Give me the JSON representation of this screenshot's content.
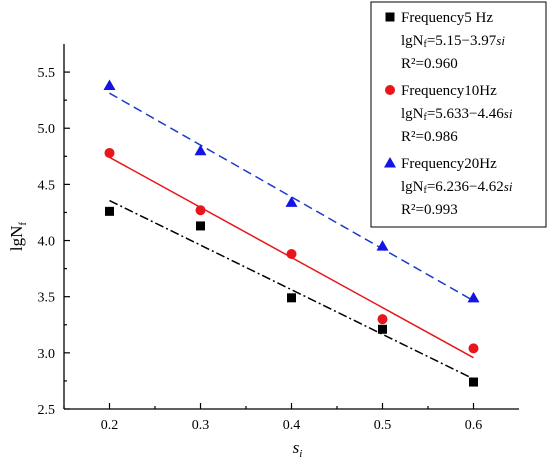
{
  "chart_data": {
    "type": "scatter",
    "xlabel": "s",
    "xlabel_sub": "i",
    "ylabel": "lgN",
    "ylabel_sub": "f",
    "xlim": [
      0.15,
      0.65
    ],
    "ylim": [
      2.5,
      5.75
    ],
    "xticks": [
      "0.2",
      "0.3",
      "0.4",
      "0.5",
      "0.6"
    ],
    "yticks": [
      "2.5",
      "3.0",
      "3.5",
      "4.0",
      "4.5",
      "5.0",
      "5.5"
    ],
    "legend_position": "top-right",
    "series": [
      {
        "name": "Frequency5 Hz",
        "marker": "square",
        "color": "#000000",
        "line_style": "dash-dot",
        "line_color": "#000000",
        "x": [
          0.2,
          0.3,
          0.4,
          0.5,
          0.6
        ],
        "y": [
          4.26,
          4.13,
          3.49,
          3.21,
          2.74
        ],
        "fit": {
          "intercept": 5.15,
          "slope": -3.97
        },
        "equation_prefix": "lgN",
        "equation_sub": "f",
        "equation_body": "=5.15−3.97",
        "equation_var": "si",
        "r2": "R²=0.960"
      },
      {
        "name": "Frequency10Hz",
        "marker": "circle",
        "color": "#e8161b",
        "line_style": "solid",
        "line_color": "#e8161b",
        "x": [
          0.2,
          0.3,
          0.4,
          0.5,
          0.6
        ],
        "y": [
          4.78,
          4.27,
          3.88,
          3.3,
          3.04
        ],
        "fit": {
          "intercept": 5.633,
          "slope": -4.46
        },
        "equation_prefix": "lgN",
        "equation_sub": "f",
        "equation_body": "=5.633−4.46",
        "equation_var": "si",
        "r2": "R²=0.986"
      },
      {
        "name": "Frequency20Hz",
        "marker": "triangle",
        "color": "#1414e6",
        "line_style": "dashed",
        "line_color": "#1a3cc8",
        "x": [
          0.2,
          0.3,
          0.4,
          0.5,
          0.6
        ],
        "y": [
          5.38,
          4.8,
          4.34,
          3.95,
          3.49
        ],
        "fit": {
          "intercept": 6.236,
          "slope": -4.62
        },
        "equation_prefix": "lgN",
        "equation_sub": "f",
        "equation_body": "=6.236−4.62",
        "equation_var": "si",
        "r2": "R²=0.993"
      }
    ]
  }
}
